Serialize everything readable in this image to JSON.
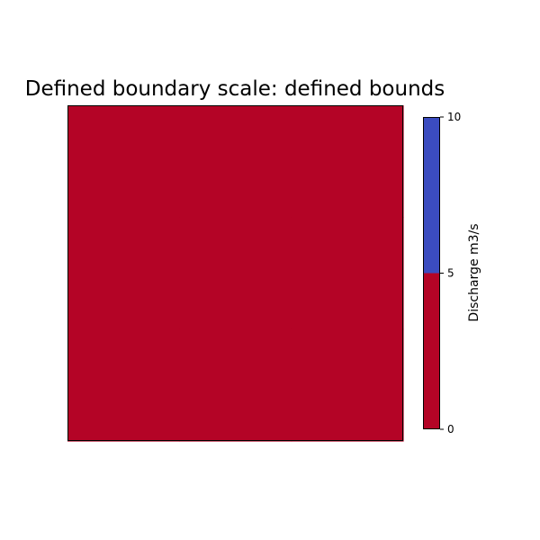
{
  "chart_data": {
    "type": "heatmap",
    "title": "Defined boundary scale: defined bounds",
    "grid": [
      [
        1,
        1,
        1
      ],
      [
        1,
        2,
        2
      ],
      [
        2,
        2,
        2
      ]
    ],
    "colorbar": {
      "label": "Discharge m3/s",
      "bounds": [
        0,
        5,
        10
      ],
      "tick_labels": [
        "0",
        "5",
        "10"
      ],
      "colors": [
        "#b40426",
        "#3b4cc0"
      ]
    },
    "axes_visible": false
  }
}
